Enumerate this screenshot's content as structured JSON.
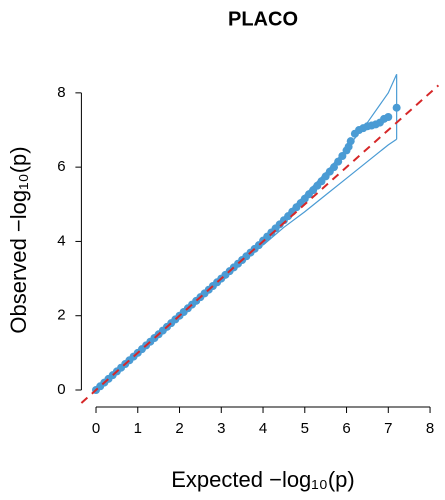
{
  "chart_data": {
    "type": "scatter",
    "title": "PLACO",
    "xlabel": "Expected  −log₁₀(p)",
    "ylabel": "Observed  −log₁₀(p)",
    "x": [
      0,
      0.1,
      0.2,
      0.3,
      0.4,
      0.5,
      0.6,
      0.7,
      0.8,
      0.9,
      1,
      1.1,
      1.2,
      1.3,
      1.4,
      1.5,
      1.6,
      1.7,
      1.8,
      1.9,
      2,
      2.1,
      2.2,
      2.3,
      2.4,
      2.5,
      2.6,
      2.7,
      2.8,
      2.9,
      3,
      3.1,
      3.2,
      3.3,
      3.4,
      3.5,
      3.6,
      3.7,
      3.8,
      3.9,
      4,
      4.1,
      4.2,
      4.3,
      4.4,
      4.5,
      4.6,
      4.7,
      4.8,
      4.9,
      5,
      5.1,
      5.2,
      5.3,
      5.4,
      5.5,
      5.6,
      5.7,
      5.8,
      5.9,
      6,
      6.05,
      6.1,
      6.2,
      6.3,
      6.4,
      6.5,
      6.6,
      6.7,
      6.8,
      6.9,
      7.0,
      7.2
    ],
    "y": [
      0,
      0.1,
      0.2,
      0.3,
      0.4,
      0.5,
      0.6,
      0.7,
      0.8,
      0.9,
      1,
      1.1,
      1.2,
      1.3,
      1.4,
      1.5,
      1.6,
      1.7,
      1.8,
      1.9,
      2,
      2.1,
      2.2,
      2.3,
      2.4,
      2.5,
      2.6,
      2.7,
      2.8,
      2.9,
      3,
      3.1,
      3.2,
      3.3,
      3.4,
      3.5,
      3.6,
      3.7,
      3.8,
      3.9,
      4.02,
      4.13,
      4.24,
      4.35,
      4.46,
      4.57,
      4.68,
      4.8,
      4.92,
      5.03,
      5.15,
      5.27,
      5.38,
      5.5,
      5.62,
      5.75,
      5.88,
      6.0,
      6.15,
      6.3,
      6.45,
      6.55,
      6.7,
      6.9,
      7.0,
      7.05,
      7.1,
      7.12,
      7.15,
      7.2,
      7.3,
      7.35,
      7.6
    ],
    "color": "#4a9bd4",
    "ci_x": [
      4,
      4.5,
      5,
      5.5,
      6,
      6.5,
      7,
      7.2
    ],
    "ci_upper": [
      4.1,
      4.65,
      5.25,
      5.85,
      6.5,
      7.2,
      8.0,
      8.5
    ],
    "ci_lower": [
      3.9,
      4.38,
      4.8,
      5.25,
      5.7,
      6.15,
      6.6,
      6.75
    ],
    "reference_line": {
      "slope": 1,
      "intercept": 0,
      "color": "#d62728"
    },
    "xlim": [
      -0.35,
      8.2
    ],
    "ylim": [
      -0.35,
      8.4
    ],
    "xticks": [
      0,
      1,
      2,
      3,
      4,
      5,
      6,
      7,
      8
    ],
    "yticks": [
      0,
      2,
      4,
      6,
      8
    ]
  }
}
